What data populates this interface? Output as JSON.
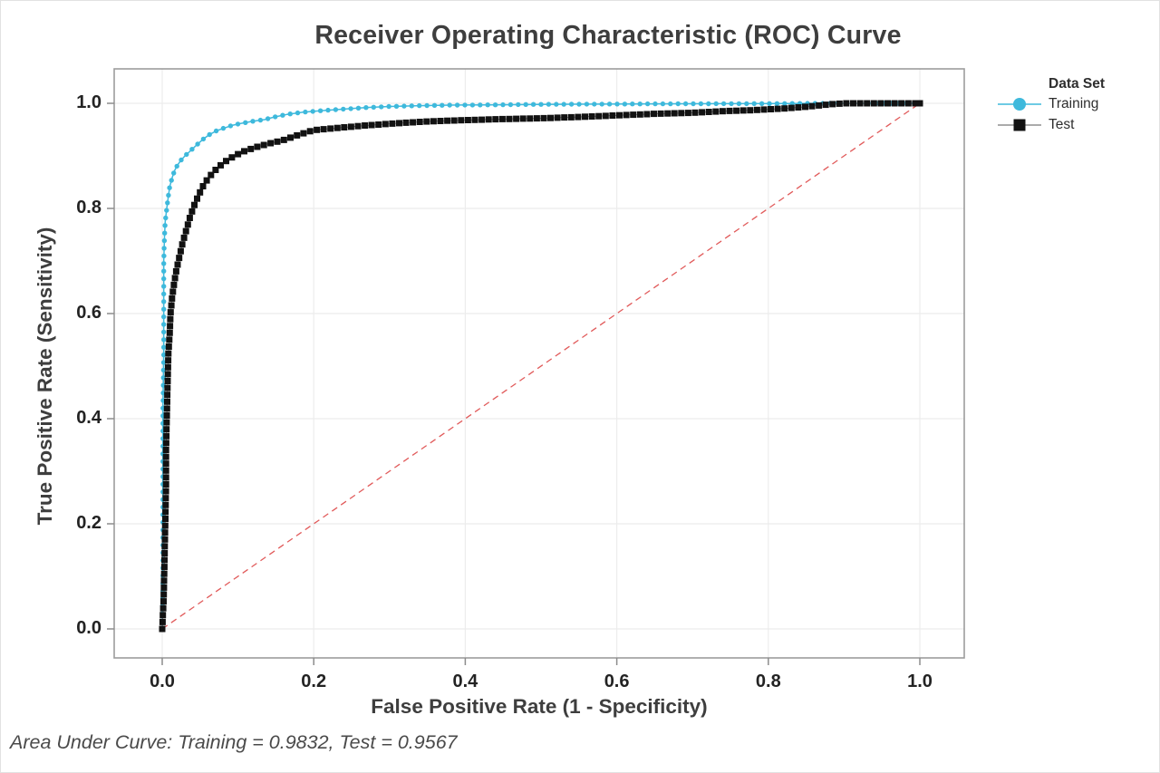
{
  "chart_data": {
    "type": "line",
    "title": "Receiver Operating Characteristic (ROC) Curve",
    "xlabel": "False Positive Rate (1 - Specificity)",
    "ylabel": "True Positive Rate (Sensitivity)",
    "xlim": [
      0,
      1
    ],
    "ylim": [
      0,
      1
    ],
    "grid": true,
    "x_tick_values": [
      0.0,
      0.2,
      0.4,
      0.6,
      0.8,
      1.0
    ],
    "x_tick_labels": [
      "0.0",
      "0.2",
      "0.4",
      "0.6",
      "0.8",
      "1.0"
    ],
    "y_tick_values": [
      0.0,
      0.2,
      0.4,
      0.6,
      0.8,
      1.0
    ],
    "y_tick_labels": [
      "0.0",
      "0.2",
      "0.4",
      "0.6",
      "0.8",
      "1.0"
    ],
    "legend_title": "Data Set",
    "legend_position": "right",
    "colors": {
      "grid": "#ececec",
      "frame": "#9c9c9c",
      "tick": "#8c8c8c"
    },
    "reference_line": {
      "name": "chance-diagonal",
      "from": [
        0,
        0
      ],
      "to": [
        1,
        1
      ],
      "style": "dashed",
      "color": "#e15a5a"
    },
    "series": [
      {
        "name": "Training",
        "marker": "circle",
        "color": "#3eb9dc",
        "line_color": "#3eb9dc",
        "auc": 0.9832,
        "points": [
          [
            0.0,
            0.0
          ],
          [
            0.001,
            0.08
          ],
          [
            0.001,
            0.18
          ],
          [
            0.001,
            0.3
          ],
          [
            0.001,
            0.42
          ],
          [
            0.002,
            0.52
          ],
          [
            0.002,
            0.62
          ],
          [
            0.002,
            0.7
          ],
          [
            0.003,
            0.745
          ],
          [
            0.004,
            0.775
          ],
          [
            0.006,
            0.8
          ],
          [
            0.008,
            0.822
          ],
          [
            0.01,
            0.842
          ],
          [
            0.013,
            0.858
          ],
          [
            0.016,
            0.871
          ],
          [
            0.02,
            0.882
          ],
          [
            0.025,
            0.892
          ],
          [
            0.03,
            0.9
          ],
          [
            0.036,
            0.908
          ],
          [
            0.042,
            0.916
          ],
          [
            0.048,
            0.924
          ],
          [
            0.055,
            0.933
          ],
          [
            0.063,
            0.941
          ],
          [
            0.072,
            0.948
          ],
          [
            0.082,
            0.953
          ],
          [
            0.092,
            0.958
          ],
          [
            0.105,
            0.962
          ],
          [
            0.12,
            0.966
          ],
          [
            0.135,
            0.969
          ],
          [
            0.148,
            0.974
          ],
          [
            0.165,
            0.979
          ],
          [
            0.185,
            0.983
          ],
          [
            0.21,
            0.986
          ],
          [
            0.24,
            0.989
          ],
          [
            0.27,
            0.992
          ],
          [
            0.3,
            0.994
          ],
          [
            0.34,
            0.9955
          ],
          [
            0.38,
            0.9965
          ],
          [
            0.43,
            0.997
          ],
          [
            0.5,
            0.998
          ],
          [
            0.58,
            0.9985
          ],
          [
            0.66,
            0.999
          ],
          [
            0.75,
            0.9993
          ],
          [
            0.83,
            0.9996
          ],
          [
            0.89,
            1.0
          ],
          [
            1.0,
            1.0
          ]
        ]
      },
      {
        "name": "Test",
        "marker": "square",
        "color": "#121212",
        "line_color": "#8f8f8f",
        "auc": 0.9567,
        "points": [
          [
            0.0,
            0.0
          ],
          [
            0.002,
            0.06
          ],
          [
            0.003,
            0.13
          ],
          [
            0.004,
            0.2
          ],
          [
            0.005,
            0.27
          ],
          [
            0.005,
            0.34
          ],
          [
            0.006,
            0.4
          ],
          [
            0.007,
            0.46
          ],
          [
            0.008,
            0.52
          ],
          [
            0.01,
            0.565
          ],
          [
            0.011,
            0.6
          ],
          [
            0.013,
            0.63
          ],
          [
            0.016,
            0.66
          ],
          [
            0.019,
            0.685
          ],
          [
            0.023,
            0.71
          ],
          [
            0.027,
            0.735
          ],
          [
            0.032,
            0.76
          ],
          [
            0.037,
            0.785
          ],
          [
            0.042,
            0.805
          ],
          [
            0.048,
            0.825
          ],
          [
            0.054,
            0.843
          ],
          [
            0.061,
            0.858
          ],
          [
            0.068,
            0.87
          ],
          [
            0.077,
            0.882
          ],
          [
            0.087,
            0.893
          ],
          [
            0.098,
            0.902
          ],
          [
            0.11,
            0.91
          ],
          [
            0.125,
            0.917
          ],
          [
            0.14,
            0.923
          ],
          [
            0.16,
            0.93
          ],
          [
            0.18,
            0.94
          ],
          [
            0.2,
            0.949
          ],
          [
            0.23,
            0.953
          ],
          [
            0.27,
            0.958
          ],
          [
            0.31,
            0.962
          ],
          [
            0.35,
            0.9655
          ],
          [
            0.4,
            0.968
          ],
          [
            0.45,
            0.97
          ],
          [
            0.5,
            0.9715
          ],
          [
            0.55,
            0.974
          ],
          [
            0.6,
            0.977
          ],
          [
            0.65,
            0.98
          ],
          [
            0.7,
            0.982
          ],
          [
            0.74,
            0.985
          ],
          [
            0.78,
            0.987
          ],
          [
            0.82,
            0.99
          ],
          [
            0.855,
            0.994
          ],
          [
            0.88,
            0.998
          ],
          [
            0.9,
            1.0
          ],
          [
            1.0,
            1.0
          ]
        ]
      }
    ],
    "footnote": "Area Under Curve: Training = 0.9832, Test = 0.9567"
  }
}
